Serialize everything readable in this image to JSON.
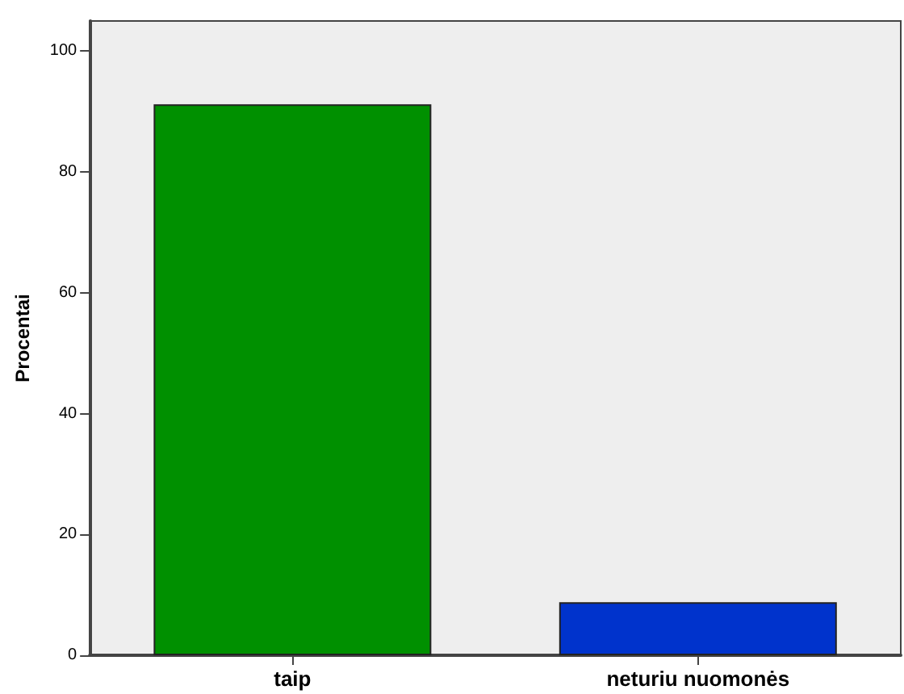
{
  "chart_data": {
    "type": "bar",
    "ylabel": "Procentai",
    "categories": [
      "taip",
      "neturiu nuomonės"
    ],
    "values": [
      91.2,
      8.8
    ],
    "colors": [
      "#009000",
      "#0033cc"
    ],
    "ylim": [
      0,
      105
    ],
    "yticks": [
      0,
      20,
      40,
      60,
      80,
      100
    ]
  }
}
